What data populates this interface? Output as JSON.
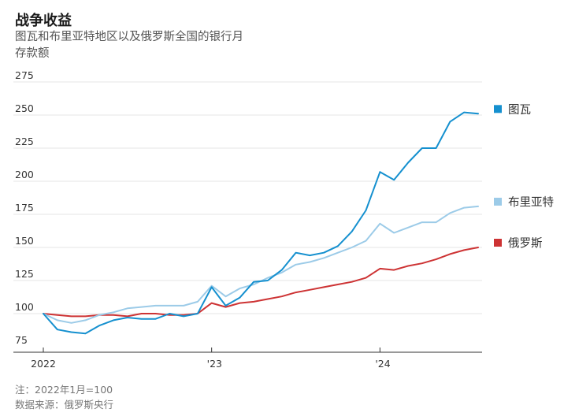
{
  "header": {
    "title": "战争收益",
    "subtitle": "图瓦和布里亚特地区以及俄罗斯全国的银行月存款额"
  },
  "footer": {
    "note": "注：2022年1月=100",
    "source": "数据来源：俄罗斯央行"
  },
  "chart_data": {
    "type": "line",
    "title": "战争收益",
    "subtitle": "图瓦和布里亚特地区以及俄罗斯全国的银行月存款额",
    "x_start": "2022-01",
    "x_end": "2024-08",
    "x_ticks": [
      {
        "value": "2022-01",
        "label": "2022"
      },
      {
        "value": "2023-01",
        "label": "'23"
      },
      {
        "value": "2024-01",
        "label": "'24"
      }
    ],
    "ylim": [
      75,
      275
    ],
    "y_ticks": [
      75,
      100,
      125,
      150,
      175,
      200,
      225,
      250,
      275
    ],
    "grid": "horizontal",
    "legend_position": "right",
    "x": [
      "2022-01",
      "2022-02",
      "2022-03",
      "2022-04",
      "2022-05",
      "2022-06",
      "2022-07",
      "2022-08",
      "2022-09",
      "2022-10",
      "2022-11",
      "2022-12",
      "2023-01",
      "2023-02",
      "2023-03",
      "2023-04",
      "2023-05",
      "2023-06",
      "2023-07",
      "2023-08",
      "2023-09",
      "2023-10",
      "2023-11",
      "2023-12",
      "2024-01",
      "2024-02",
      "2024-03",
      "2024-04",
      "2024-05",
      "2024-06",
      "2024-07",
      "2024-08"
    ],
    "series": [
      {
        "name": "图瓦",
        "color": "#1590cf",
        "values": [
          100,
          88,
          86,
          85,
          91,
          95,
          97,
          96,
          96,
          100,
          98,
          100,
          120,
          106,
          112,
          124,
          125,
          133,
          146,
          144,
          146,
          151,
          162,
          178,
          207,
          201,
          214,
          225,
          225,
          245,
          252,
          251
        ]
      },
      {
        "name": "布里亚特",
        "color": "#9ccbe8",
        "values": [
          100,
          95,
          93,
          95,
          99,
          101,
          104,
          105,
          106,
          106,
          106,
          109,
          121,
          113,
          119,
          122,
          127,
          131,
          137,
          139,
          142,
          146,
          150,
          155,
          168,
          161,
          165,
          169,
          169,
          176,
          180,
          181
        ]
      },
      {
        "name": "俄罗斯",
        "color": "#cd3334",
        "values": [
          100,
          99,
          98,
          98,
          99,
          99,
          98,
          100,
          100,
          99,
          99,
          100,
          108,
          105,
          108,
          109,
          111,
          113,
          116,
          118,
          120,
          122,
          124,
          127,
          134,
          133,
          136,
          138,
          141,
          145,
          148,
          150
        ]
      }
    ]
  }
}
